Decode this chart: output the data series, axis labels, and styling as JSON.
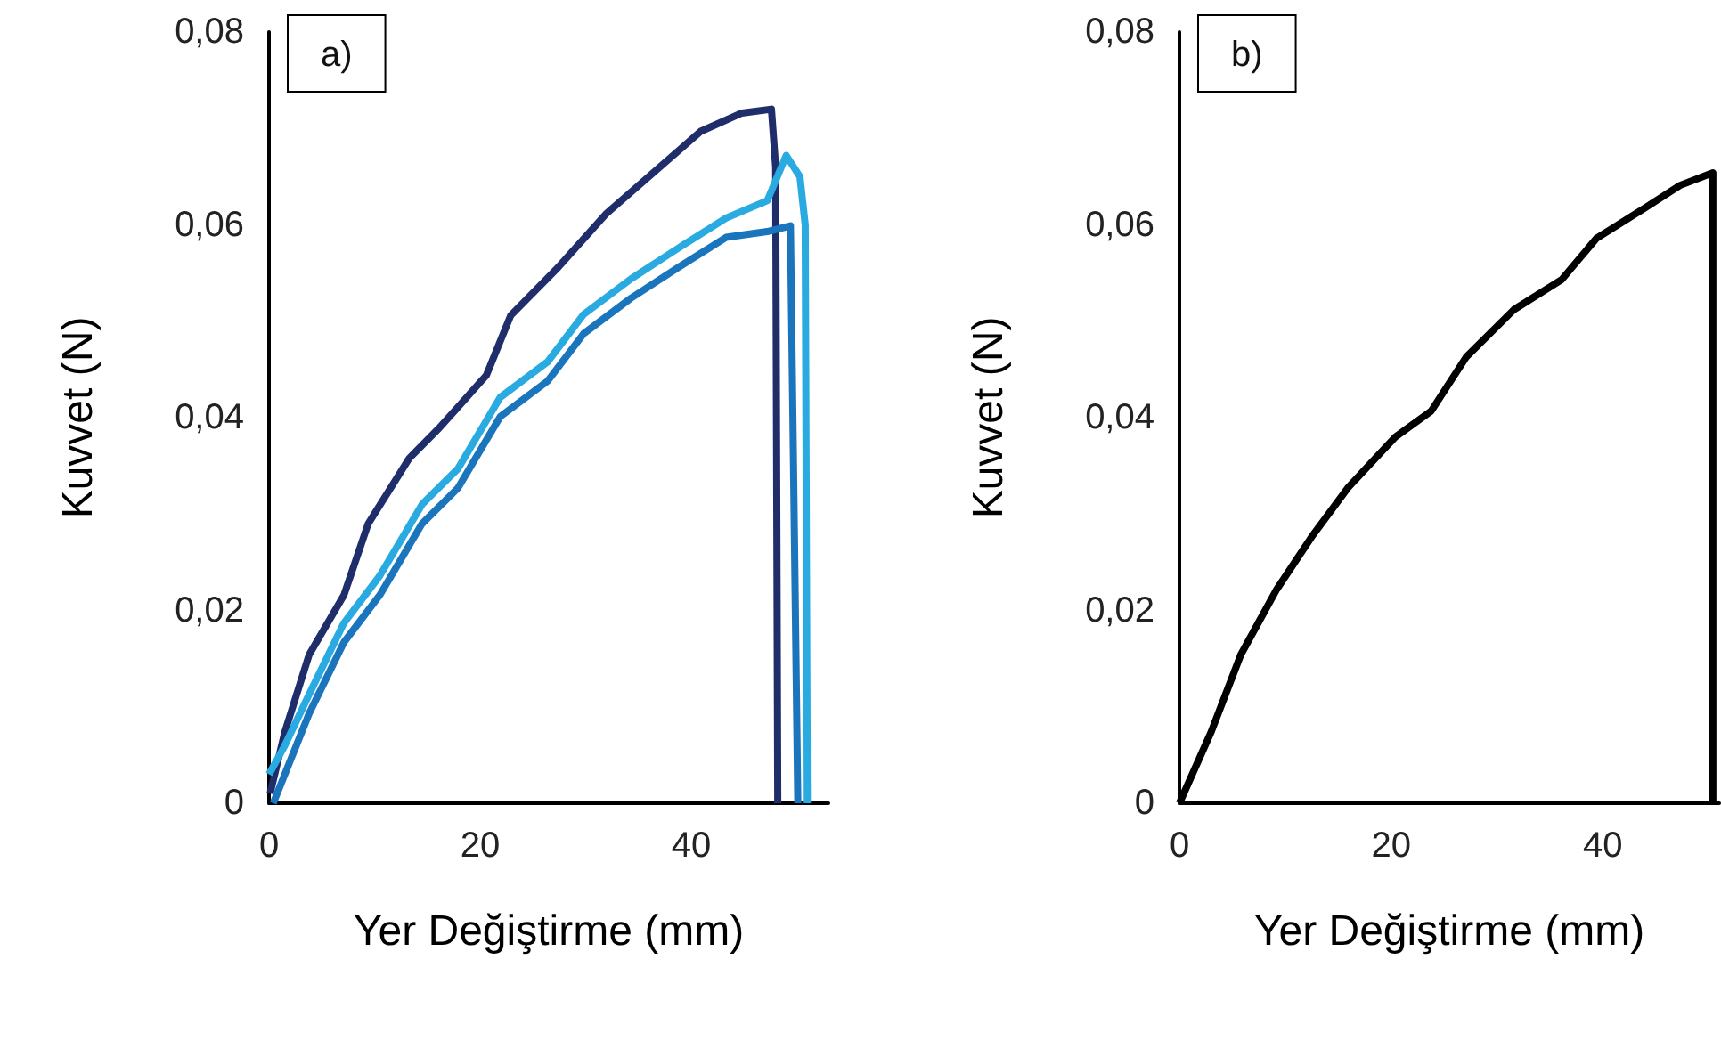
{
  "chart_data": [
    {
      "type": "line",
      "xlabel": "Yer Değiştirme (mm)",
      "ylabel": "Kuvvet (N)",
      "annotations": [
        "a)"
      ],
      "xlim": [
        0,
        53
      ],
      "xticks": [
        0,
        20,
        40
      ],
      "ylim": [
        0,
        0.08
      ],
      "yticks": [
        {
          "value": 0,
          "label": "0"
        },
        {
          "value": 0.02,
          "label": "0,02"
        },
        {
          "value": 0.04,
          "label": "0,04"
        },
        {
          "value": 0.06,
          "label": "0,06"
        },
        {
          "value": 0.08,
          "label": "0,08"
        }
      ],
      "marker": "none",
      "line_style": "solid",
      "series": [
        {
          "color": "#1f2d6b",
          "x": [
            0.1,
            1.5,
            3.8,
            7.1,
            9.4,
            13.3,
            16.1,
            20.6,
            22.9,
            27.4,
            31.9,
            36.4,
            40.9,
            44.8,
            47.6,
            48.0,
            48.2
          ],
          "values": [
            0.001,
            0.0074,
            0.0154,
            0.0216,
            0.029,
            0.0358,
            0.0389,
            0.0444,
            0.0506,
            0.0556,
            0.0611,
            0.0654,
            0.0697,
            0.0716,
            0.072,
            0.066,
            0
          ]
        },
        {
          "color": "#29abe2",
          "x": [
            0,
            1.5,
            3.8,
            7.1,
            10.5,
            14.5,
            17.9,
            21.9,
            26.4,
            29.8,
            34.3,
            38.8,
            43.3,
            47.2,
            49.0,
            50.3,
            50.8,
            51.0
          ],
          "values": [
            0.003,
            0.006,
            0.0113,
            0.0187,
            0.0236,
            0.031,
            0.0347,
            0.0421,
            0.0458,
            0.0507,
            0.0544,
            0.0576,
            0.0607,
            0.0625,
            0.0672,
            0.065,
            0.06,
            0
          ]
        },
        {
          "color": "#1b75bc",
          "x": [
            0.4,
            3.8,
            7.1,
            10.5,
            14.5,
            17.9,
            21.9,
            26.4,
            29.8,
            34.3,
            38.8,
            43.3,
            47.2,
            49.4,
            50.1
          ],
          "values": [
            0,
            0.0093,
            0.0167,
            0.0216,
            0.029,
            0.0327,
            0.0401,
            0.0438,
            0.0487,
            0.0524,
            0.0556,
            0.0587,
            0.0593,
            0.0599,
            0
          ]
        }
      ]
    },
    {
      "type": "line",
      "xlabel": "Yer Değiştirme (mm)",
      "ylabel": "Kuvvet (N)",
      "annotations": [
        "b)"
      ],
      "xlim": [
        0,
        51
      ],
      "xticks": [
        0,
        20,
        40
      ],
      "ylim": [
        0,
        0.08
      ],
      "yticks": [
        {
          "value": 0,
          "label": "0"
        },
        {
          "value": 0.02,
          "label": "0,02"
        },
        {
          "value": 0.04,
          "label": "0,04"
        },
        {
          "value": 0.06,
          "label": "0,06"
        },
        {
          "value": 0.08,
          "label": "0,08"
        }
      ],
      "marker": "none",
      "line_style": "solid",
      "series": [
        {
          "color": "#000000",
          "x": [
            0,
            3.0,
            5.8,
            9.2,
            12.6,
            15.9,
            20.4,
            23.8,
            27.1,
            31.6,
            36.1,
            39.4,
            43.9,
            47.3,
            50.4,
            50.4
          ],
          "values": [
            0,
            0.0074,
            0.0154,
            0.0222,
            0.0278,
            0.0327,
            0.038,
            0.0407,
            0.0463,
            0.0512,
            0.0543,
            0.0586,
            0.0617,
            0.0641,
            0.0654,
            0
          ]
        }
      ]
    }
  ]
}
